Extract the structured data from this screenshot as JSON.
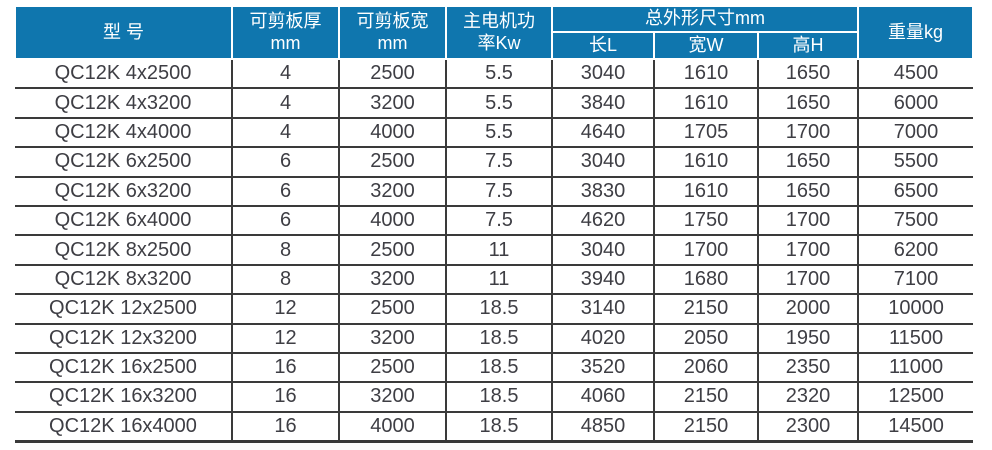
{
  "accent_color": "#0f76ae",
  "text_color": "#3e3e44",
  "grid_color": "#3a3a3a",
  "header": {
    "model": "型 号",
    "thickness": "可剪板厚\nmm",
    "plate_width": "可剪板宽\nmm",
    "power": "主电机功\n率Kw",
    "dimensions_group": "总外形尺寸mm",
    "length": "长L",
    "width_w": "宽W",
    "height": "高H",
    "weight": "重量kg"
  },
  "chart_data": {
    "type": "table",
    "columns": [
      "型 号",
      "可剪板厚 mm",
      "可剪板宽 mm",
      "主电机功率Kw",
      "总外形尺寸mm 长L",
      "总外形尺寸mm 宽W",
      "总外形尺寸mm 高H",
      "重量kg"
    ],
    "rows": [
      [
        "QC12K 4x2500",
        4,
        2500,
        5.5,
        3040,
        1610,
        1650,
        4500
      ],
      [
        "QC12K 4x3200",
        4,
        3200,
        5.5,
        3840,
        1610,
        1650,
        6000
      ],
      [
        "QC12K 4x4000",
        4,
        4000,
        5.5,
        4640,
        1705,
        1700,
        7000
      ],
      [
        "QC12K 6x2500",
        6,
        2500,
        7.5,
        3040,
        1610,
        1650,
        5500
      ],
      [
        "QC12K 6x3200",
        6,
        3200,
        7.5,
        3830,
        1610,
        1650,
        6500
      ],
      [
        "QC12K 6x4000",
        6,
        4000,
        7.5,
        4620,
        1750,
        1700,
        7500
      ],
      [
        "QC12K 8x2500",
        8,
        2500,
        11,
        3040,
        1700,
        1700,
        6200
      ],
      [
        "QC12K 8x3200",
        8,
        3200,
        11,
        3940,
        1680,
        1700,
        7100
      ],
      [
        "QC12K 12x2500",
        12,
        2500,
        18.5,
        3140,
        2150,
        2000,
        10000
      ],
      [
        "QC12K 12x3200",
        12,
        3200,
        18.5,
        4020,
        2050,
        1950,
        11500
      ],
      [
        "QC12K 16x2500",
        16,
        2500,
        18.5,
        3520,
        2060,
        2350,
        11000
      ],
      [
        "QC12K 16x3200",
        16,
        3200,
        18.5,
        4060,
        2150,
        2320,
        12500
      ],
      [
        "QC12K 16x4000",
        16,
        4000,
        18.5,
        4850,
        2150,
        2300,
        14500
      ]
    ]
  }
}
